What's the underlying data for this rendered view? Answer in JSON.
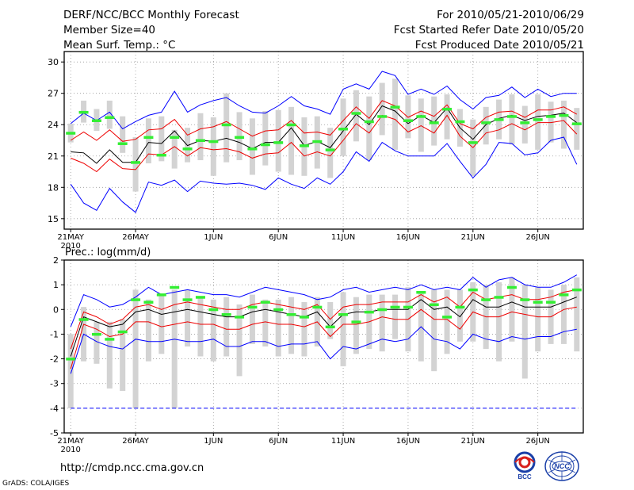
{
  "header": {
    "title": "DERF/NCC/BCC Monthly Forecast",
    "member": "Member Size=40",
    "variable": "Mean Surf. Temp.: °C",
    "period": "For 2010/05/21-2010/06/29",
    "started": "Fcst Started Refer Date 2010/05/20",
    "produced": "Fcst Produced Date 2010/05/21"
  },
  "prec_label": "Prec.: log(mm/d)",
  "footer": {
    "url": "http://cmdp.ncc.cma.gov.cn",
    "grads": "GrADS: COLA/IGES",
    "logo1": "BCC",
    "logo2": "NCC"
  },
  "colors": {
    "max": "#0000ff",
    "pct": "#ee0000",
    "mean": "#000000",
    "box": "#d3d3d3",
    "obs": "#33ee33"
  },
  "x_ticks": [
    {
      "day": 1,
      "label": "21MAY",
      "sub": "2010"
    },
    {
      "day": 6,
      "label": "26MAY",
      "sub": ""
    },
    {
      "day": 12,
      "label": "1JUN",
      "sub": ""
    },
    {
      "day": 17,
      "label": "6JUN",
      "sub": ""
    },
    {
      "day": 22,
      "label": "11JUN",
      "sub": ""
    },
    {
      "day": 27,
      "label": "16JUN",
      "sub": ""
    },
    {
      "day": 32,
      "label": "21JUN",
      "sub": ""
    },
    {
      "day": 37,
      "label": "26JUN",
      "sub": ""
    }
  ],
  "chart_data": [
    {
      "type": "line",
      "title": "Mean Surf. Temp.: °C",
      "x": [
        1,
        2,
        3,
        4,
        5,
        6,
        7,
        8,
        9,
        10,
        11,
        12,
        13,
        14,
        15,
        16,
        17,
        18,
        19,
        20,
        21,
        22,
        23,
        24,
        25,
        26,
        27,
        28,
        29,
        30,
        31,
        32,
        33,
        34,
        35,
        36,
        37,
        38,
        39,
        40
      ],
      "xlim": [
        0.5,
        40.5
      ],
      "ylim": [
        14,
        31
      ],
      "yticks": [
        15,
        18,
        21,
        24,
        27,
        30
      ],
      "series": [
        {
          "name": "max",
          "style": "blue",
          "values": [
            24.1,
            25.1,
            24.4,
            25.2,
            23.6,
            24.3,
            24.9,
            25.2,
            27.2,
            25.2,
            25.9,
            26.3,
            26.6,
            25.8,
            25.2,
            25.1,
            25.8,
            26.7,
            25.8,
            25.5,
            25.0,
            27.4,
            27.9,
            27.4,
            29.1,
            28.7,
            26.9,
            27.4,
            26.9,
            27.7,
            26.4,
            25.5,
            26.6,
            26.8,
            27.6,
            26.6,
            27.4,
            26.7,
            27.0,
            27.0
          ]
        },
        {
          "name": "p90",
          "style": "red",
          "values": [
            22.5,
            23.3,
            22.5,
            23.5,
            22.4,
            22.6,
            23.5,
            23.6,
            24.5,
            23.0,
            23.6,
            23.8,
            24.3,
            23.6,
            22.9,
            23.4,
            23.5,
            24.4,
            23.2,
            23.3,
            23.0,
            24.4,
            25.7,
            24.6,
            26.3,
            25.8,
            24.7,
            25.3,
            24.8,
            25.9,
            24.1,
            23.6,
            24.7,
            25.2,
            25.3,
            24.7,
            25.4,
            25.4,
            25.7,
            25.0
          ]
        },
        {
          "name": "mean",
          "style": "black",
          "values": [
            21.4,
            21.3,
            20.3,
            21.6,
            20.4,
            20.4,
            22.3,
            22.2,
            23.4,
            22.0,
            22.5,
            22.4,
            22.7,
            22.3,
            21.7,
            22.3,
            22.3,
            23.7,
            22.0,
            22.4,
            21.8,
            23.4,
            25.0,
            24.0,
            25.8,
            25.3,
            24.1,
            24.9,
            24.2,
            25.6,
            23.7,
            22.6,
            24.0,
            24.6,
            24.9,
            24.4,
            24.8,
            24.9,
            25.1,
            24.2
          ]
        },
        {
          "name": "p10",
          "style": "red",
          "values": [
            20.8,
            20.3,
            19.5,
            20.7,
            19.8,
            19.7,
            21.2,
            21.1,
            21.9,
            21.0,
            21.8,
            21.6,
            21.7,
            21.4,
            20.8,
            21.2,
            21.3,
            22.3,
            21.0,
            21.4,
            21.0,
            22.5,
            24.1,
            23.2,
            24.9,
            24.5,
            23.3,
            23.9,
            23.2,
            24.9,
            22.9,
            21.8,
            23.2,
            23.5,
            24.1,
            23.5,
            24.2,
            24.2,
            24.4,
            23.1
          ]
        },
        {
          "name": "min",
          "style": "blue",
          "values": [
            18.3,
            16.5,
            15.8,
            17.9,
            16.6,
            15.6,
            18.5,
            18.2,
            18.7,
            17.6,
            18.6,
            18.4,
            18.3,
            18.4,
            18.2,
            17.8,
            18.9,
            18.3,
            17.9,
            18.9,
            18.3,
            19.5,
            21.4,
            20.5,
            22.3,
            21.5,
            21.0,
            21.0,
            21.0,
            22.2,
            20.5,
            18.9,
            20.2,
            22.3,
            22.2,
            21.1,
            21.3,
            22.5,
            22.8,
            20.2
          ]
        }
      ],
      "box_ranges": [
        [
          22.3,
          24.1
        ],
        [
          24.2,
          26.3
        ],
        [
          23.4,
          25.5
        ],
        [
          23.6,
          26.3
        ],
        [
          21.3,
          24.8
        ],
        [
          17.6,
          22.8
        ],
        [
          20.3,
          24.6
        ],
        [
          20.5,
          24.8
        ],
        [
          19.8,
          23.5
        ],
        [
          20.4,
          23.7
        ],
        [
          20.6,
          25.1
        ],
        [
          19.1,
          24.7
        ],
        [
          20.4,
          27.0
        ],
        [
          20.6,
          25.2
        ],
        [
          19.2,
          24.6
        ],
        [
          20.1,
          25.3
        ],
        [
          19.5,
          25.4
        ],
        [
          19.2,
          25.7
        ],
        [
          19.1,
          24.7
        ],
        [
          19.8,
          24.8
        ],
        [
          18.9,
          23.7
        ],
        [
          21.0,
          26.5
        ],
        [
          22.4,
          27.3
        ],
        [
          20.6,
          26.7
        ],
        [
          23.0,
          28.0
        ],
        [
          21.6,
          28.4
        ],
        [
          22.7,
          26.8
        ],
        [
          21.4,
          26.5
        ],
        [
          22.0,
          26.7
        ],
        [
          22.6,
          26.9
        ],
        [
          21.9,
          25.5
        ],
        [
          19.1,
          24.5
        ],
        [
          22.1,
          25.7
        ],
        [
          22.6,
          26.4
        ],
        [
          22.1,
          26.9
        ],
        [
          22.2,
          25.8
        ],
        [
          21.6,
          26.9
        ],
        [
          22.3,
          26.2
        ],
        [
          21.7,
          26.3
        ],
        [
          21.6,
          25.6
        ]
      ],
      "obs": [
        23.2,
        25.2,
        24.4,
        24.7,
        22.2,
        20.4,
        22.8,
        21.1,
        22.8,
        21.7,
        22.5,
        22.4,
        24.0,
        22.8,
        21.7,
        22.1,
        22.3,
        24.0,
        22.0,
        22.4,
        21.6,
        23.6,
        25.1,
        24.3,
        24.8,
        25.7,
        24.4,
        24.8,
        24.2,
        25.5,
        24.3,
        22.3,
        24.2,
        24.5,
        24.8,
        24.2,
        24.5,
        24.8,
        24.9,
        24.1
      ]
    },
    {
      "type": "line",
      "title": "Prec.: log(mm/d)",
      "x": [
        1,
        2,
        3,
        4,
        5,
        6,
        7,
        8,
        9,
        10,
        11,
        12,
        13,
        14,
        15,
        16,
        17,
        18,
        19,
        20,
        21,
        22,
        23,
        24,
        25,
        26,
        27,
        28,
        29,
        30,
        31,
        32,
        33,
        34,
        35,
        36,
        37,
        38,
        39,
        40
      ],
      "xlim": [
        0.5,
        40.5
      ],
      "ylim": [
        -5,
        2
      ],
      "yticks": [
        -5,
        -4,
        -3,
        -2,
        -1,
        0,
        1,
        2
      ],
      "series": [
        {
          "name": "max",
          "style": "blue",
          "values": [
            -0.7,
            0.6,
            0.4,
            0.1,
            0.2,
            0.5,
            0.9,
            0.6,
            0.7,
            0.8,
            0.7,
            0.6,
            0.6,
            0.5,
            0.7,
            0.9,
            0.8,
            0.7,
            0.6,
            0.4,
            0.5,
            0.8,
            0.9,
            0.7,
            0.8,
            0.9,
            0.8,
            1.0,
            0.8,
            0.9,
            0.8,
            1.3,
            0.9,
            1.2,
            1.3,
            1.0,
            0.9,
            0.9,
            1.1,
            1.4
          ]
        },
        {
          "name": "p90",
          "style": "red",
          "values": [
            -1.6,
            -0.1,
            -0.3,
            -0.6,
            -0.4,
            0.1,
            0.2,
            0.0,
            0.2,
            0.3,
            0.2,
            0.1,
            0.0,
            0.0,
            0.2,
            0.3,
            0.2,
            0.1,
            0.0,
            0.2,
            -0.4,
            0.1,
            0.2,
            0.2,
            0.3,
            0.3,
            0.3,
            0.6,
            0.3,
            0.5,
            0.1,
            0.7,
            0.4,
            0.5,
            0.6,
            0.4,
            0.4,
            0.5,
            0.7,
            0.8
          ]
        },
        {
          "name": "mean",
          "style": "black",
          "values": [
            -1.9,
            -0.3,
            -0.5,
            -0.7,
            -0.6,
            -0.1,
            0.0,
            -0.2,
            -0.1,
            0.0,
            -0.1,
            -0.2,
            -0.3,
            -0.3,
            -0.1,
            0.0,
            -0.1,
            -0.2,
            -0.3,
            -0.1,
            -0.7,
            -0.2,
            -0.1,
            -0.1,
            0.0,
            0.0,
            0.0,
            0.4,
            0.0,
            0.1,
            -0.3,
            0.4,
            0.1,
            0.1,
            0.3,
            0.1,
            0.1,
            0.1,
            0.3,
            0.5
          ]
        },
        {
          "name": "p10",
          "style": "red",
          "values": [
            -2.4,
            -0.6,
            -0.8,
            -1.1,
            -1.0,
            -0.5,
            -0.5,
            -0.7,
            -0.6,
            -0.5,
            -0.6,
            -0.6,
            -0.8,
            -0.8,
            -0.6,
            -0.5,
            -0.6,
            -0.6,
            -0.7,
            -0.5,
            -1.1,
            -0.6,
            -0.6,
            -0.5,
            -0.3,
            -0.4,
            -0.4,
            0.0,
            -0.4,
            -0.4,
            -0.8,
            -0.1,
            -0.3,
            -0.3,
            -0.1,
            -0.2,
            -0.3,
            -0.3,
            0.0,
            0.1
          ]
        },
        {
          "name": "min",
          "style": "blue",
          "values": [
            -2.6,
            -1.0,
            -1.3,
            -1.5,
            -1.6,
            -1.2,
            -1.3,
            -1.3,
            -1.2,
            -1.3,
            -1.3,
            -1.2,
            -1.5,
            -1.5,
            -1.3,
            -1.3,
            -1.5,
            -1.4,
            -1.4,
            -1.3,
            -2.0,
            -1.5,
            -1.6,
            -1.4,
            -1.2,
            -1.3,
            -1.2,
            -0.7,
            -1.2,
            -1.3,
            -1.6,
            -1.0,
            -1.2,
            -1.3,
            -1.1,
            -1.2,
            -1.1,
            -1.1,
            -0.9,
            -0.8
          ]
        },
        {
          "name": "lower_bound",
          "style": "dash",
          "values": [
            -4,
            -4,
            -4,
            -4,
            -4,
            -4,
            -4,
            -4,
            -4,
            -4,
            -4,
            -4,
            -4,
            -4,
            -4,
            -4,
            -4,
            -4,
            -4,
            -4,
            -4,
            -4,
            -4,
            -4,
            -4,
            -4,
            -4,
            -4,
            -4,
            -4,
            -4,
            -4,
            -4,
            -4,
            -4,
            -4,
            -4,
            -4,
            -4,
            -4
          ]
        }
      ],
      "box_ranges": [
        [
          -4.0,
          -1.0
        ],
        [
          -2.1,
          0.1
        ],
        [
          -2.2,
          -0.5
        ],
        [
          -3.2,
          -0.5
        ],
        [
          -3.3,
          -0.4
        ],
        [
          -4.0,
          0.8
        ],
        [
          -2.1,
          0.4
        ],
        [
          -1.8,
          0.6
        ],
        [
          -4.0,
          0.8
        ],
        [
          -1.5,
          0.8
        ],
        [
          -1.9,
          0.5
        ],
        [
          -2.1,
          0.4
        ],
        [
          -1.9,
          0.5
        ],
        [
          -2.7,
          0.2
        ],
        [
          -1.4,
          0.6
        ],
        [
          -1.5,
          0.4
        ],
        [
          -1.9,
          0.4
        ],
        [
          -1.8,
          0.5
        ],
        [
          -1.9,
          0.3
        ],
        [
          -1.5,
          0.5
        ],
        [
          -1.2,
          0.3
        ],
        [
          -2.3,
          0.7
        ],
        [
          -1.8,
          0.5
        ],
        [
          -1.6,
          0.6
        ],
        [
          -1.7,
          0.6
        ],
        [
          -1.2,
          0.6
        ],
        [
          -1.7,
          0.9
        ],
        [
          -2.1,
          0.7
        ],
        [
          -2.5,
          0.8
        ],
        [
          -1.8,
          0.8
        ],
        [
          -1.3,
          0.8
        ],
        [
          -1.3,
          1.1
        ],
        [
          -1.6,
          1.0
        ],
        [
          -2.1,
          1.1
        ],
        [
          -1.3,
          1.3
        ],
        [
          -2.8,
          1.0
        ],
        [
          -1.7,
          0.9
        ],
        [
          -1.4,
          0.8
        ],
        [
          -1.4,
          1.0
        ],
        [
          -1.7,
          1.3
        ]
      ],
      "obs": [
        -2.0,
        -0.4,
        -1.0,
        -1.2,
        -0.9,
        0.4,
        0.3,
        0.6,
        0.9,
        0.4,
        0.5,
        0.0,
        -0.2,
        -0.3,
        0.1,
        0.3,
        0.0,
        -0.2,
        -0.3,
        0.1,
        -0.7,
        -0.2,
        -0.5,
        -0.1,
        0.0,
        0.1,
        0.1,
        0.7,
        0.2,
        -0.3,
        0.1,
        0.8,
        0.4,
        0.5,
        0.9,
        0.4,
        0.3,
        0.3,
        0.6,
        0.8
      ]
    }
  ]
}
